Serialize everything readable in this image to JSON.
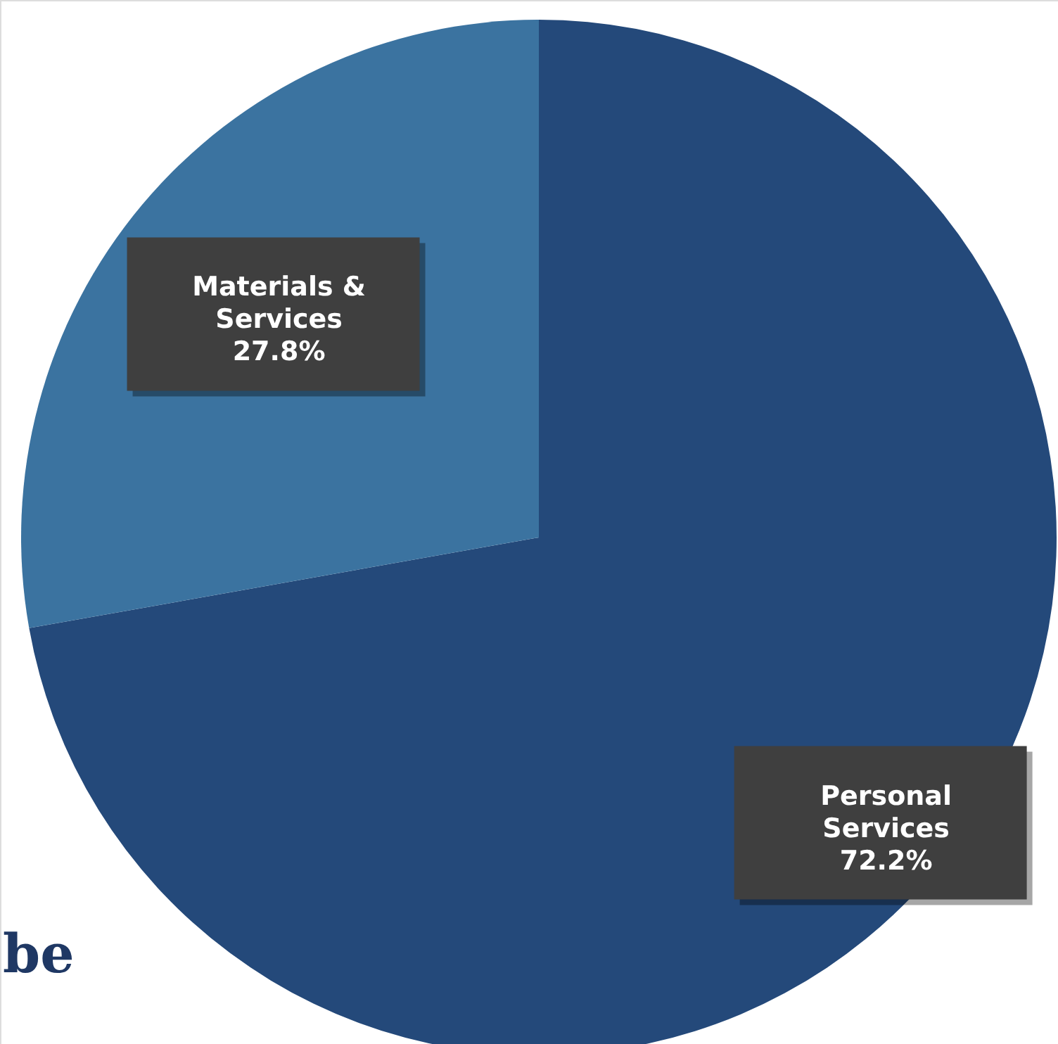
{
  "chart_data": {
    "type": "pie",
    "categories": [
      "Personal Services",
      "Materials & Services"
    ],
    "values": [
      72.2,
      27.8
    ],
    "colors": [
      "#24497a",
      "#3b73a0"
    ],
    "value_labels": [
      "72.2%",
      "27.8%"
    ],
    "legend": false,
    "annotations": [
      "be"
    ]
  }
}
